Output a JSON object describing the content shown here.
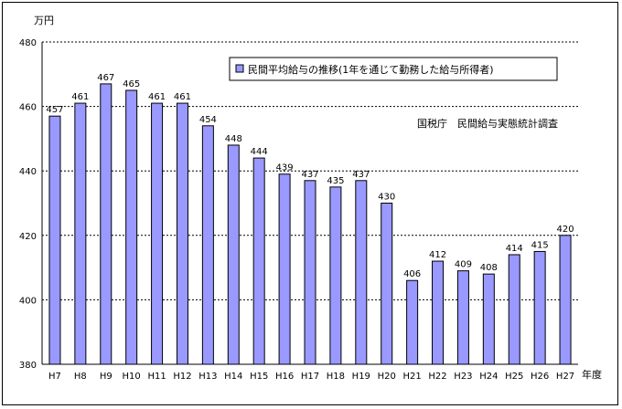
{
  "chart_data": {
    "type": "bar",
    "y_unit_label": "万円",
    "x_unit_label": "年度",
    "legend_label": "民間平均給与の推移(1年を通じて勤務した給与所得者)",
    "source_note": "国税庁　民間給与実態統計調査",
    "categories": [
      "H7",
      "H8",
      "H9",
      "H10",
      "H11",
      "H12",
      "H13",
      "H14",
      "H15",
      "H16",
      "H17",
      "H18",
      "H19",
      "H20",
      "H21",
      "H22",
      "H23",
      "H24",
      "H25",
      "H26",
      "H27"
    ],
    "values": [
      457,
      461,
      467,
      465,
      461,
      461,
      454,
      448,
      444,
      439,
      437,
      435,
      437,
      430,
      406,
      412,
      409,
      408,
      414,
      415,
      420
    ],
    "ylim": [
      380,
      480
    ],
    "yticks": [
      380,
      400,
      420,
      440,
      460,
      480
    ],
    "grid": true,
    "legend_position": "top-right",
    "colors": {
      "bar_fill": "#9999ff",
      "bar_stroke": "#000000",
      "grid": "#000000"
    }
  }
}
